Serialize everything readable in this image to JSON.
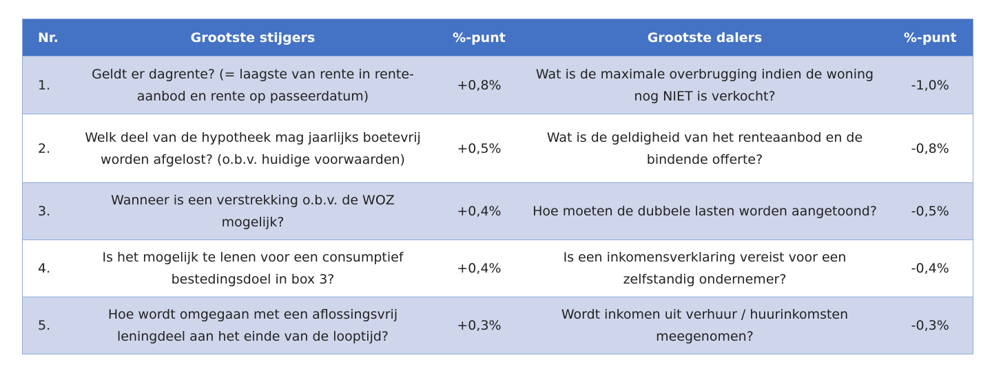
{
  "table": {
    "header": [
      "Nr.",
      "Grootste stijgers",
      "%-punt",
      "Grootste dalers",
      "%-punt"
    ],
    "rows": [
      [
        "1.",
        "Geldt er dagrente? (= laagste van rente in rente-aanbod en rente op passeerdatum)",
        "+0,8%",
        "Wat is de maximale overbrugging indien de woning nog NIET is verkocht?",
        "-1,0%"
      ],
      [
        "2.",
        "Welk deel van de hypotheek mag jaarlijks boetevrij worden afgelost? (o.b.v. huidige voorwaarden)",
        "+0,5%",
        "Wat is de geldigheid van het renteaanbod en de bindende offerte?",
        "-0,8%"
      ],
      [
        "3.",
        "Wanneer is een verstrekking o.b.v. de WOZ mogelijk?",
        "+0,4%",
        "Hoe moeten de dubbele lasten worden aangetoond?",
        "-0,5%"
      ],
      [
        "4.",
        "Is het mogelijk te lenen voor een consumptief bestedingsdoel in box 3?",
        "+0,4%",
        "Is een inkomensverklaring vereist voor een zelfstandig ondernemer?",
        "-0,4%"
      ],
      [
        "5.",
        "Hoe wordt omgegaan met een aflossingsvrij leningdeel aan het einde van de looptijd?",
        "+0,3%",
        "Wordt inkomen uit verhuur / huurinkomsten meegenomen?",
        "-0,3%"
      ]
    ]
  }
}
